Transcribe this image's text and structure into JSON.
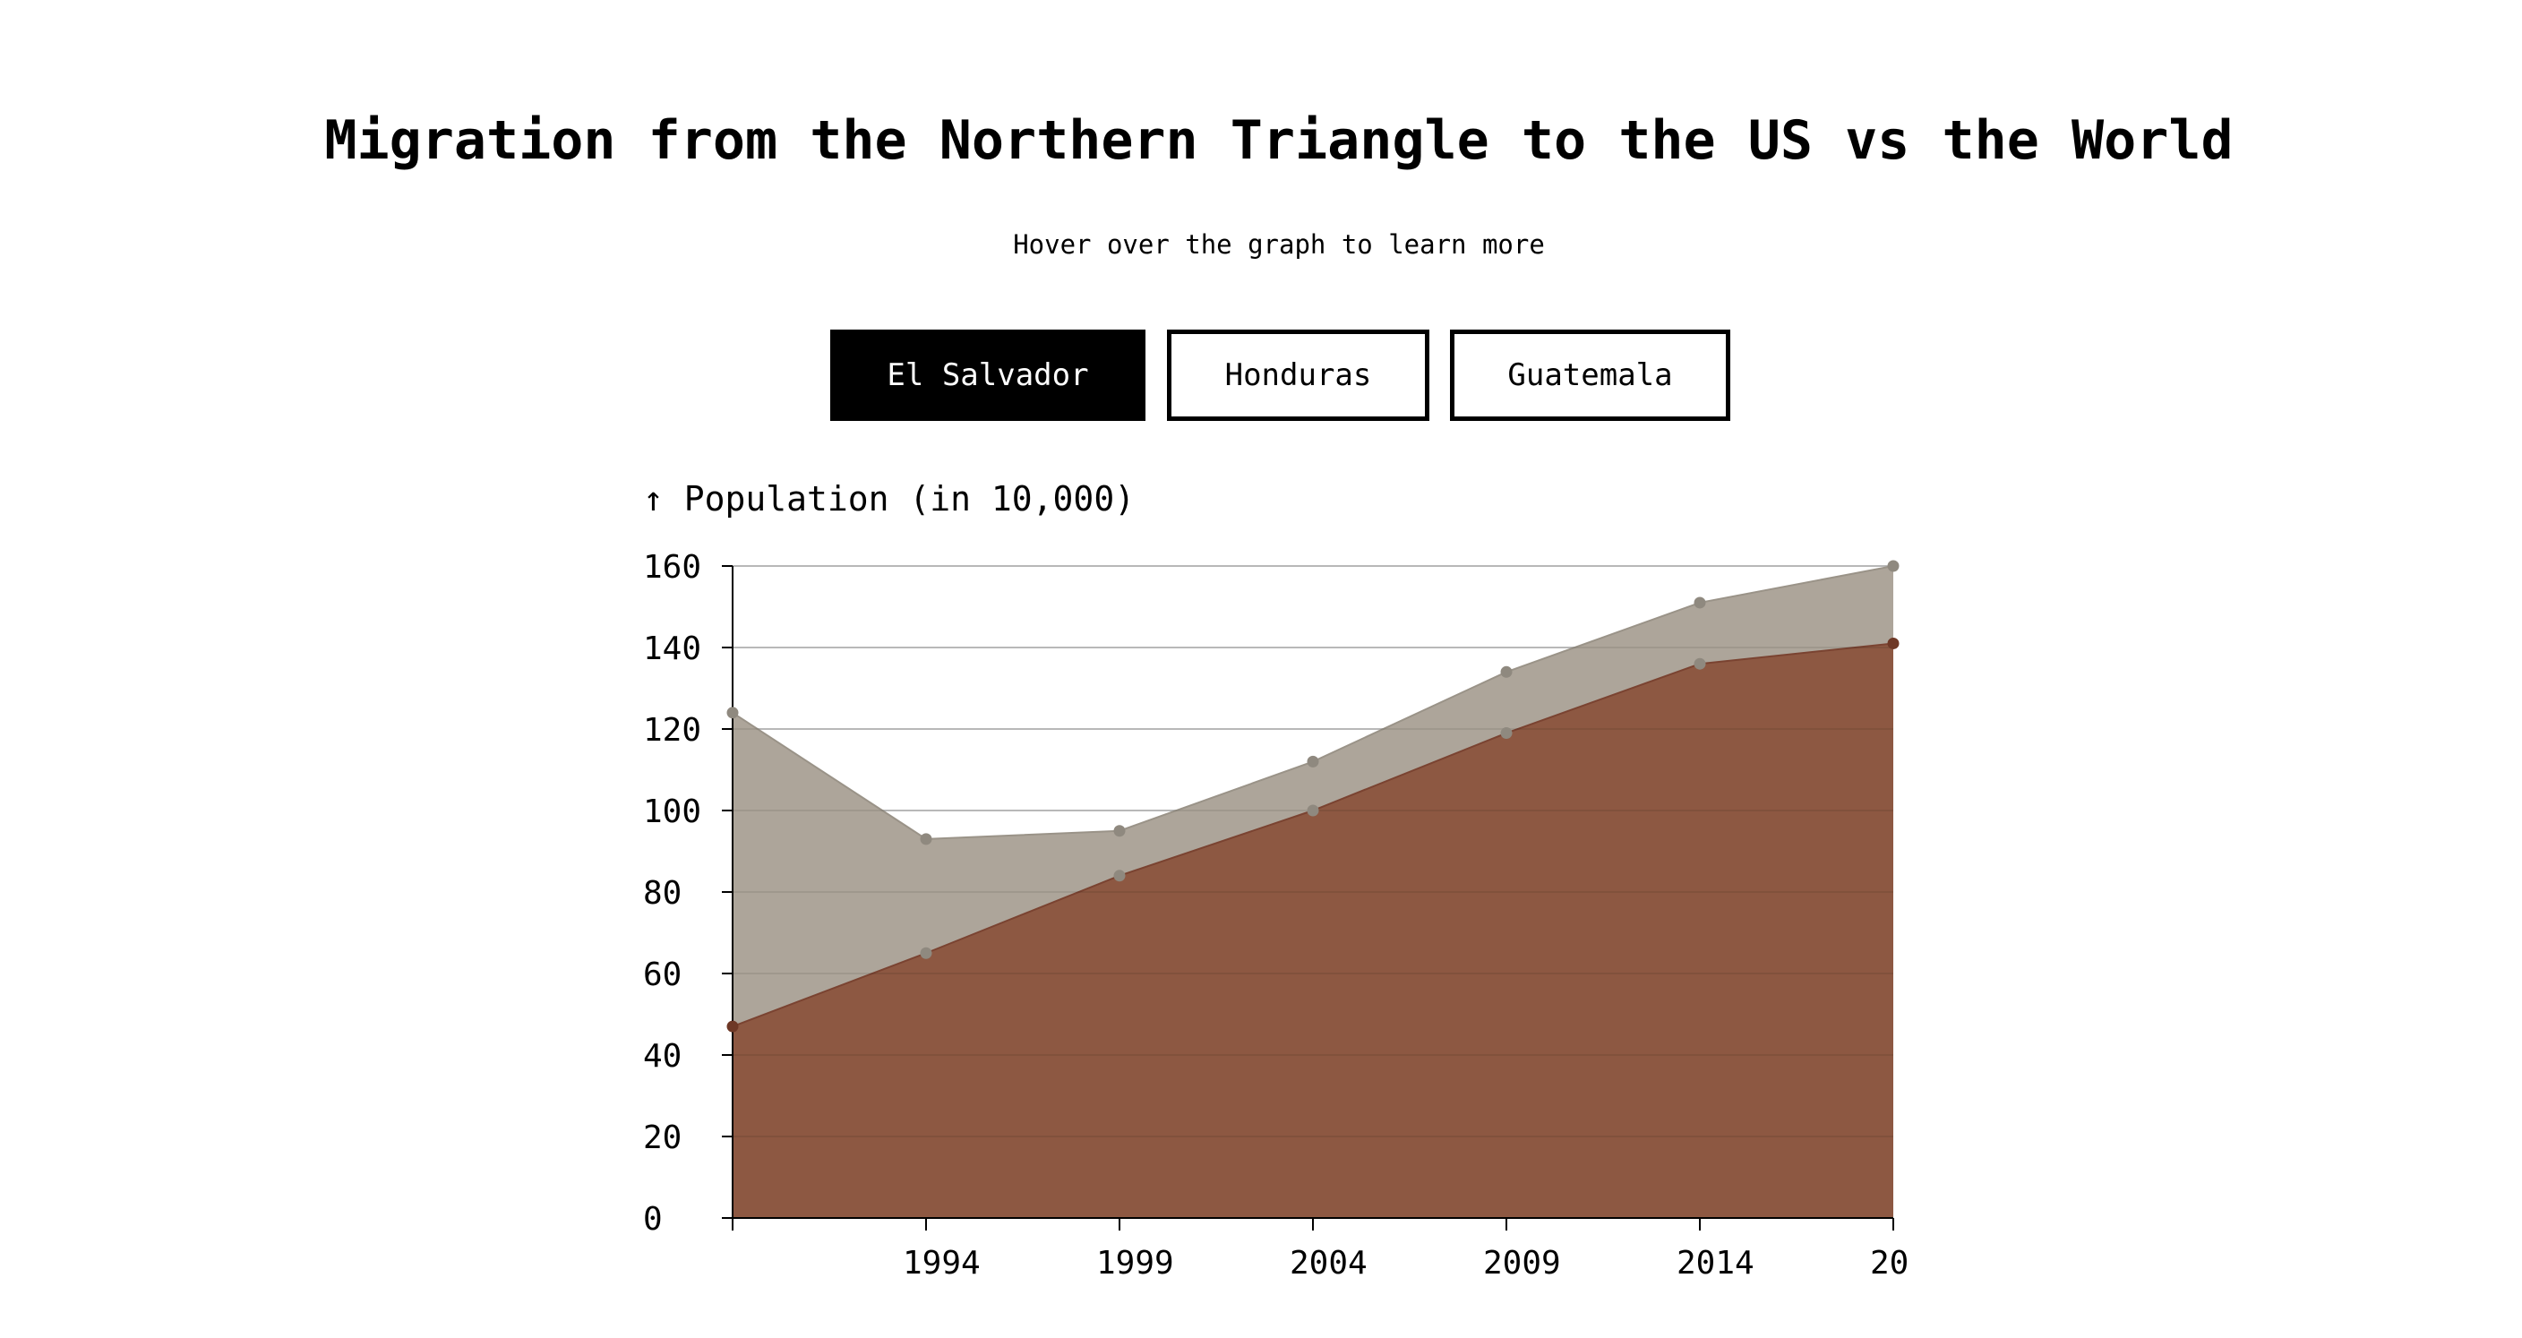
{
  "header": {
    "title": "Migration from the Northern Triangle to the US vs the World",
    "subtitle": "Hover over the graph to learn more"
  },
  "buttons": [
    {
      "label": "El Salvador",
      "active": true
    },
    {
      "label": "Honduras",
      "active": false
    },
    {
      "label": "Guatemala",
      "active": false
    }
  ],
  "colors": {
    "world": "#ada59a",
    "world_point": "#8f897f",
    "us": "#8b563f",
    "us_point": "#6e3826",
    "gridline": "#c8c8c8"
  },
  "chart_data": {
    "type": "area",
    "ylabel": "↑ Population (in 10,000)",
    "x": [
      1990,
      1995,
      2000,
      2005,
      2010,
      2015,
      2020
    ],
    "x_tick_labels": [
      "1994",
      "1999",
      "2004",
      "2009",
      "2014",
      "20"
    ],
    "ylim": [
      0,
      160
    ],
    "yticks": [
      0,
      20,
      40,
      60,
      80,
      100,
      120,
      140,
      160
    ],
    "grid": true,
    "series": [
      {
        "key": "world",
        "values": [
          124,
          93,
          95,
          112,
          134,
          151,
          160
        ]
      },
      {
        "key": "us",
        "values": [
          47,
          65,
          84,
          100,
          119,
          136,
          141
        ]
      }
    ]
  }
}
